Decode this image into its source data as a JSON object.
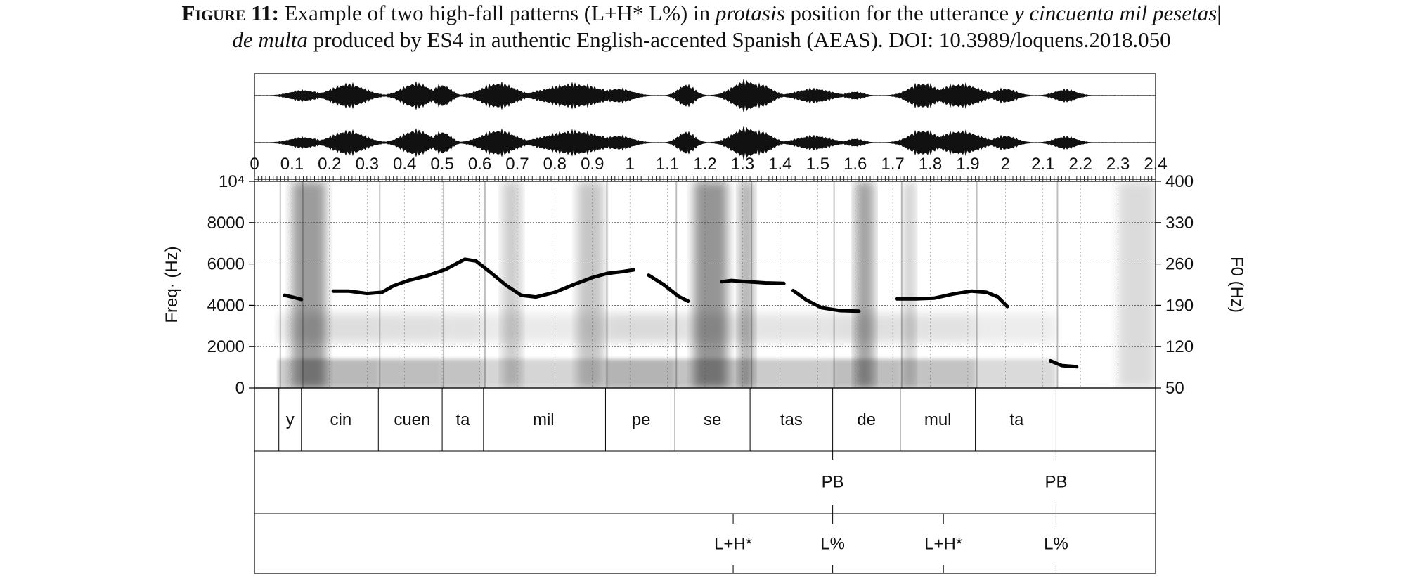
{
  "caption": {
    "label": "Figure 11:",
    "line1_a": " Example of two high-fall patterns (L+H* L%) in ",
    "line1_b": "protasis",
    "line1_c": " position for the utterance ",
    "line1_d": "y cincuenta mil pesetas",
    "line1_e": "|",
    "line2_a": "de multa",
    "line2_b": " produced by ES4 in authentic English-accented Spanish (AEAS). DOI: 10.3989/loquens.2018.050"
  },
  "chart_data": {
    "type": "line",
    "time_axis": {
      "range": [
        0,
        2.4
      ],
      "tick_labels": [
        "0",
        "0.1",
        "0.2",
        "0.3",
        "0.4",
        "0.5",
        "0.6",
        "0.7",
        "0.8",
        "0.9",
        "1",
        "1.1",
        "1.2",
        "1.3",
        "1.4",
        "1.5",
        "1.6",
        "1.7",
        "1.8",
        "1.9",
        "2",
        "2.1",
        "2.2",
        "2.3",
        "2.4"
      ]
    },
    "freq_axis": {
      "ylabel": "Freq· (Hz)",
      "range": [
        0,
        10000
      ],
      "tick_labels": [
        "0",
        "2000",
        "4000",
        "6000",
        "8000",
        "10⁴"
      ],
      "ticks": [
        0,
        2000,
        4000,
        6000,
        8000,
        10000
      ]
    },
    "f0_axis": {
      "ylabel": "F0 (Hz)",
      "range": [
        50,
        400
      ],
      "tick_labels": [
        "50",
        "120",
        "190",
        "260",
        "330",
        "400"
      ],
      "ticks": [
        50,
        120,
        190,
        260,
        330,
        400
      ]
    },
    "pitch_segments": [
      [
        [
          0.08,
          207
        ],
        [
          0.1,
          204
        ],
        [
          0.125,
          200
        ]
      ],
      [
        [
          0.21,
          214
        ],
        [
          0.25,
          214
        ],
        [
          0.3,
          210
        ],
        [
          0.34,
          212
        ],
        [
          0.37,
          223
        ],
        [
          0.41,
          232
        ],
        [
          0.46,
          240
        ],
        [
          0.51,
          251
        ],
        [
          0.56,
          268
        ],
        [
          0.59,
          265
        ],
        [
          0.63,
          245
        ],
        [
          0.67,
          224
        ],
        [
          0.71,
          207
        ],
        [
          0.75,
          204
        ],
        [
          0.8,
          212
        ],
        [
          0.85,
          225
        ],
        [
          0.9,
          237
        ],
        [
          0.94,
          244
        ],
        [
          0.98,
          247
        ],
        [
          1.01,
          250
        ]
      ],
      [
        [
          1.05,
          241
        ],
        [
          1.09,
          225
        ],
        [
          1.13,
          205
        ],
        [
          1.155,
          197
        ]
      ],
      [
        [
          1.245,
          230
        ],
        [
          1.27,
          232
        ],
        [
          1.31,
          230
        ],
        [
          1.36,
          228
        ],
        [
          1.41,
          227
        ]
      ],
      [
        [
          1.435,
          215
        ],
        [
          1.47,
          199
        ],
        [
          1.51,
          186
        ],
        [
          1.56,
          181
        ],
        [
          1.61,
          180
        ]
      ],
      [
        [
          1.71,
          201
        ],
        [
          1.76,
          201
        ],
        [
          1.81,
          202
        ],
        [
          1.86,
          209
        ],
        [
          1.91,
          214
        ],
        [
          1.95,
          212
        ],
        [
          1.98,
          204
        ],
        [
          2.005,
          188
        ]
      ],
      [
        [
          2.12,
          96
        ],
        [
          2.15,
          88
        ],
        [
          2.19,
          86
        ]
      ]
    ],
    "syllable_tier": {
      "boundaries": [
        0.065,
        0.125,
        0.33,
        0.5,
        0.61,
        0.935,
        1.12,
        1.32,
        1.54,
        1.72,
        1.92,
        2.135
      ],
      "labels": [
        {
          "t": 0.095,
          "text": "y"
        },
        {
          "t": 0.23,
          "text": "cin"
        },
        {
          "t": 0.42,
          "text": "cuen"
        },
        {
          "t": 0.555,
          "text": "ta"
        },
        {
          "t": 0.77,
          "text": "mil"
        },
        {
          "t": 1.03,
          "text": "pe"
        },
        {
          "t": 1.22,
          "text": "se"
        },
        {
          "t": 1.43,
          "text": "tas"
        },
        {
          "t": 1.63,
          "text": "de"
        },
        {
          "t": 1.82,
          "text": "mul"
        },
        {
          "t": 2.03,
          "text": "ta"
        }
      ]
    },
    "break_tier": {
      "points": [
        {
          "t": 1.54,
          "text": "PB"
        },
        {
          "t": 2.135,
          "text": "PB"
        }
      ]
    },
    "tone_tier": {
      "points": [
        {
          "t": 1.275,
          "text": "L+H*"
        },
        {
          "t": 1.54,
          "text": "L%"
        },
        {
          "t": 1.835,
          "text": "L+H*"
        },
        {
          "t": 2.135,
          "text": "L%"
        }
      ]
    }
  }
}
